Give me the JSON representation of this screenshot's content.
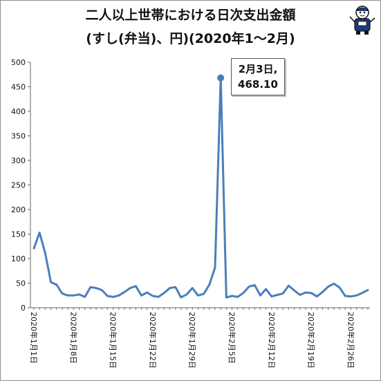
{
  "chart_data": {
    "type": "line",
    "title_line1": "二人以上世帯における日次支出金額",
    "title_line2": "(すし(弁当)、円)(2020年1～2月)",
    "xlabel": "",
    "ylabel": "",
    "ylim": [
      0,
      500
    ],
    "yticks": [
      0,
      50,
      100,
      150,
      200,
      250,
      300,
      350,
      400,
      450,
      500
    ],
    "grid": false,
    "line_color": "#4a7ebb",
    "x": [
      "2020年1月1日",
      "2020年1月2日",
      "2020年1月3日",
      "2020年1月4日",
      "2020年1月5日",
      "2020年1月6日",
      "2020年1月7日",
      "2020年1月8日",
      "2020年1月9日",
      "2020年1月10日",
      "2020年1月11日",
      "2020年1月12日",
      "2020年1月13日",
      "2020年1月14日",
      "2020年1月15日",
      "2020年1月16日",
      "2020年1月17日",
      "2020年1月18日",
      "2020年1月19日",
      "2020年1月20日",
      "2020年1月21日",
      "2020年1月22日",
      "2020年1月23日",
      "2020年1月24日",
      "2020年1月25日",
      "2020年1月26日",
      "2020年1月27日",
      "2020年1月28日",
      "2020年1月29日",
      "2020年1月30日",
      "2020年1月31日",
      "2020年2月1日",
      "2020年2月2日",
      "2020年2月3日",
      "2020年2月4日",
      "2020年2月5日",
      "2020年2月6日",
      "2020年2月7日",
      "2020年2月8日",
      "2020年2月9日",
      "2020年2月10日",
      "2020年2月11日",
      "2020年2月12日",
      "2020年2月13日",
      "2020年2月14日",
      "2020年2月15日",
      "2020年2月16日",
      "2020年2月17日",
      "2020年2月18日",
      "2020年2月19日",
      "2020年2月20日",
      "2020年2月21日",
      "2020年2月22日",
      "2020年2月23日",
      "2020年2月24日",
      "2020年2月25日",
      "2020年2月26日",
      "2020年2月27日",
      "2020年2月28日",
      "2020年2月29日"
    ],
    "x_tick_labels": [
      {
        "index": 0,
        "label": "2020年1月1日"
      },
      {
        "index": 7,
        "label": "2020年1月8日"
      },
      {
        "index": 14,
        "label": "2020年1月15日"
      },
      {
        "index": 21,
        "label": "2020年1月22日"
      },
      {
        "index": 28,
        "label": "2020年1月29日"
      },
      {
        "index": 35,
        "label": "2020年2月5日"
      },
      {
        "index": 42,
        "label": "2020年2月12日"
      },
      {
        "index": 49,
        "label": "2020年2月19日"
      },
      {
        "index": 56,
        "label": "2020年2月26日"
      }
    ],
    "series": [
      {
        "values": [
          121,
          153,
          111,
          52,
          47,
          29,
          25,
          25,
          27,
          22,
          42,
          40,
          36,
          24,
          22,
          25,
          32,
          40,
          44,
          25,
          31,
          24,
          22,
          30,
          40,
          42,
          21,
          27,
          40,
          25,
          28,
          47,
          82,
          468.1,
          21,
          24,
          22,
          30,
          43,
          46,
          25,
          38,
          23,
          26,
          29,
          45,
          35,
          26,
          31,
          30,
          23,
          32,
          43,
          49,
          41,
          24,
          23,
          25,
          30,
          36
        ]
      }
    ],
    "annotation": {
      "index": 33,
      "line1": "2月3日,",
      "line2": "468.10"
    }
  }
}
